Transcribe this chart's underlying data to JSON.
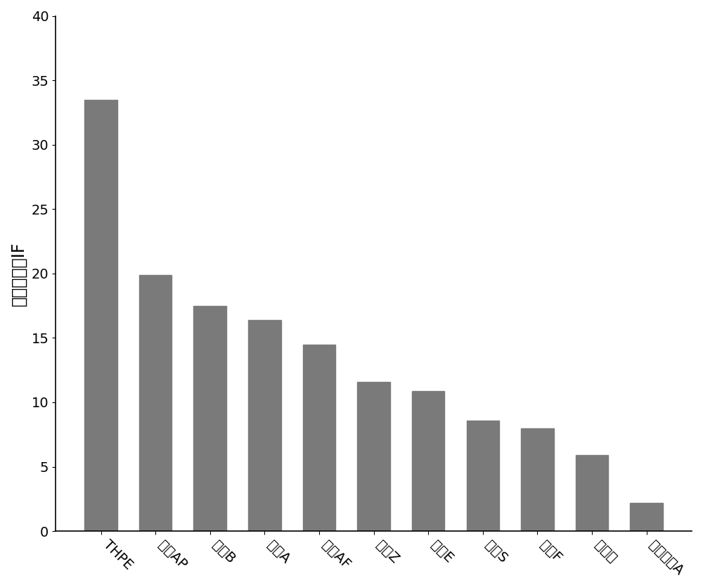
{
  "categories": [
    "THPE",
    "双酟AP",
    "双酟B",
    "双酟A",
    "双酟AF",
    "双酟Z",
    "双酟E",
    "双酟S",
    "双酟F",
    "双酟酸",
    "四渴双酟A"
  ],
  "values": [
    33.5,
    19.9,
    17.5,
    16.4,
    14.5,
    11.6,
    10.9,
    8.6,
    8.0,
    5.9,
    2.2
  ],
  "bar_color": "#7a7a7a",
  "ylabel": "印迹因子，IF",
  "ylim": [
    0,
    40
  ],
  "yticks": [
    0,
    5,
    10,
    15,
    20,
    25,
    30,
    35,
    40
  ],
  "background_color": "#ffffff",
  "bar_edgecolor": "#7a7a7a",
  "ylabel_fontsize": 17,
  "tick_fontsize": 14,
  "xtick_rotation": -45
}
